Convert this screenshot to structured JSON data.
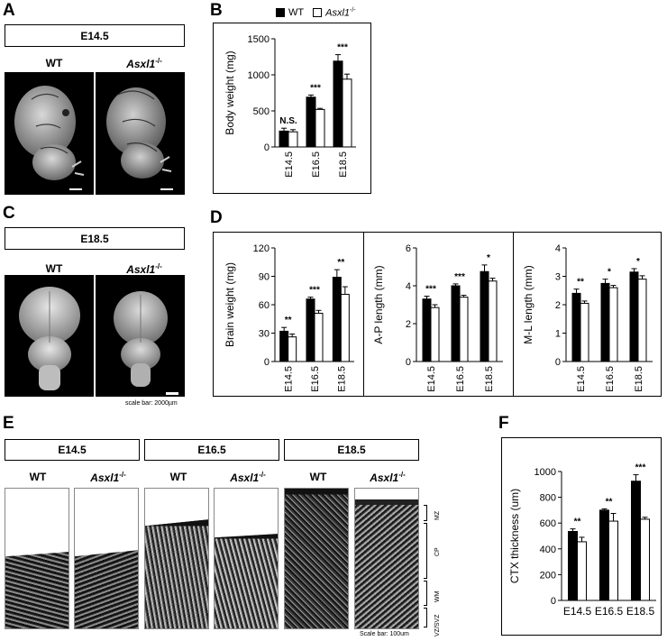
{
  "panels": {
    "A": {
      "label": "A",
      "stage": "E14.5",
      "wt": "WT",
      "ko_main": "Asxl1",
      "ko_sup": "-/-"
    },
    "B": {
      "label": "B"
    },
    "C": {
      "label": "C",
      "stage": "E18.5",
      "wt": "WT",
      "ko_main": "Asxl1",
      "ko_sup": "-/-",
      "scale": "scale bar: 2000µm"
    },
    "D": {
      "label": "D"
    },
    "E": {
      "label": "E",
      "stages": [
        "E14.5",
        "E16.5",
        "E18.5"
      ],
      "wt": "WT",
      "ko_main": "Asxl1",
      "ko_sup": "-/-",
      "scale": "Scale bar: 100um",
      "layers": [
        "MZ",
        "CP",
        "WM",
        "VZ/SVZ"
      ]
    },
    "F": {
      "label": "F"
    }
  },
  "legend": {
    "wt": "WT",
    "ko_main": "Asxl1",
    "ko_sup": "-/-"
  },
  "colors": {
    "wt": "#000000",
    "ko": "#ffffff"
  },
  "chart_data": [
    {
      "id": "B",
      "type": "bar",
      "ylabel": "Body weight (mg)",
      "categories": [
        "E14.5",
        "E16.5",
        "E18.5"
      ],
      "ylim": [
        0,
        1500
      ],
      "yticks": [
        0,
        500,
        1000,
        1500
      ],
      "series": [
        {
          "name": "WT",
          "values": [
            220,
            690,
            1190
          ],
          "errors": [
            40,
            30,
            90
          ]
        },
        {
          "name": "Asxl1-/-",
          "values": [
            210,
            520,
            940
          ],
          "errors": [
            30,
            15,
            70
          ]
        }
      ],
      "annotations": [
        "N.S.",
        "***",
        "***"
      ]
    },
    {
      "id": "D1",
      "type": "bar",
      "ylabel": "Brain weight (mg)",
      "categories": [
        "E14.5",
        "E16.5",
        "E18.5"
      ],
      "ylim": [
        0,
        120
      ],
      "yticks": [
        0,
        30,
        60,
        90,
        120
      ],
      "series": [
        {
          "name": "WT",
          "values": [
            32,
            66,
            89
          ],
          "errors": [
            4,
            2,
            8
          ]
        },
        {
          "name": "Asxl1-/-",
          "values": [
            26,
            51,
            71
          ],
          "errors": [
            3,
            3,
            8
          ]
        }
      ],
      "annotations": [
        "**",
        "***",
        "**"
      ]
    },
    {
      "id": "D2",
      "type": "bar",
      "ylabel": "A-P length (mm)",
      "categories": [
        "E14.5",
        "E16.5",
        "E18.5"
      ],
      "ylim": [
        0,
        6
      ],
      "yticks": [
        0,
        2,
        4,
        6
      ],
      "series": [
        {
          "name": "WT",
          "values": [
            3.3,
            4.0,
            4.75
          ],
          "errors": [
            0.15,
            0.1,
            0.35
          ]
        },
        {
          "name": "Asxl1-/-",
          "values": [
            2.85,
            3.4,
            4.25
          ],
          "errors": [
            0.15,
            0.1,
            0.15
          ]
        }
      ],
      "annotations": [
        "***",
        "***",
        "*"
      ]
    },
    {
      "id": "D3",
      "type": "bar",
      "ylabel": "M-L length (mm)",
      "categories": [
        "E14.5",
        "E16.5",
        "E18.5"
      ],
      "ylim": [
        0,
        4
      ],
      "yticks": [
        0,
        1,
        2,
        3,
        4
      ],
      "series": [
        {
          "name": "WT",
          "values": [
            2.4,
            2.75,
            3.15
          ],
          "errors": [
            0.15,
            0.15,
            0.12
          ]
        },
        {
          "name": "Asxl1-/-",
          "values": [
            2.05,
            2.6,
            2.9
          ],
          "errors": [
            0.08,
            0.08,
            0.12
          ]
        }
      ],
      "annotations": [
        "**",
        "*",
        "*"
      ]
    },
    {
      "id": "F",
      "type": "bar",
      "ylabel": "CTX thickness (um)",
      "categories": [
        "E14.5",
        "E16.5",
        "E18.5"
      ],
      "ylim": [
        0,
        1000
      ],
      "yticks": [
        0,
        200,
        400,
        600,
        800,
        1000
      ],
      "series": [
        {
          "name": "WT",
          "values": [
            535,
            700,
            925
          ],
          "errors": [
            20,
            10,
            50
          ]
        },
        {
          "name": "Asxl1-/-",
          "values": [
            455,
            615,
            630
          ],
          "errors": [
            35,
            60,
            15
          ]
        }
      ],
      "annotations": [
        "**",
        "**",
        "***"
      ]
    }
  ]
}
